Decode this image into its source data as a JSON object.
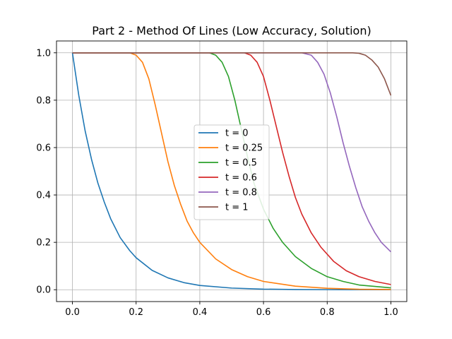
{
  "chart_data": {
    "type": "line",
    "title": "Part 2 - Method Of Lines (Low Accuracy, Solution)",
    "xlabel": "",
    "ylabel": "",
    "xlim": [
      -0.05,
      1.05
    ],
    "ylim": [
      -0.05,
      1.05
    ],
    "xticks": [
      0.0,
      0.2,
      0.4,
      0.6,
      0.8,
      1.0
    ],
    "xtick_labels": [
      "0.0",
      "0.2",
      "0.4",
      "0.6",
      "0.8",
      "1.0"
    ],
    "yticks": [
      0.0,
      0.2,
      0.4,
      0.6,
      0.8,
      1.0
    ],
    "ytick_labels": [
      "0.0",
      "0.2",
      "0.4",
      "0.6",
      "0.8",
      "1.0"
    ],
    "grid": true,
    "legend_position": "center",
    "series": [
      {
        "name": "t = 0",
        "color": "#1f77b4",
        "x": [
          0.0,
          0.02,
          0.04,
          0.06,
          0.08,
          0.1,
          0.12,
          0.15,
          0.18,
          0.2,
          0.25,
          0.3,
          0.35,
          0.4,
          0.5,
          0.6,
          0.7,
          0.8,
          0.9,
          1.0
        ],
        "y": [
          1.0,
          0.82,
          0.67,
          0.55,
          0.45,
          0.37,
          0.3,
          0.22,
          0.165,
          0.135,
          0.082,
          0.05,
          0.03,
          0.018,
          0.007,
          0.0025,
          0.001,
          0.0003,
          0.0001,
          0.0
        ]
      },
      {
        "name": "t = 0.25",
        "color": "#ff7f0e",
        "x": [
          0.0,
          0.1,
          0.18,
          0.2,
          0.22,
          0.24,
          0.26,
          0.28,
          0.3,
          0.32,
          0.34,
          0.36,
          0.38,
          0.4,
          0.45,
          0.5,
          0.55,
          0.6,
          0.7,
          0.8,
          0.9,
          1.0
        ],
        "y": [
          1.0,
          1.0,
          1.0,
          0.99,
          0.96,
          0.89,
          0.78,
          0.66,
          0.54,
          0.44,
          0.36,
          0.29,
          0.24,
          0.2,
          0.13,
          0.085,
          0.055,
          0.035,
          0.015,
          0.006,
          0.002,
          0.001
        ]
      },
      {
        "name": "t = 0.5",
        "color": "#2ca02c",
        "x": [
          0.0,
          0.3,
          0.43,
          0.45,
          0.47,
          0.49,
          0.51,
          0.53,
          0.55,
          0.57,
          0.6,
          0.63,
          0.66,
          0.7,
          0.75,
          0.8,
          0.85,
          0.9,
          1.0
        ],
        "y": [
          1.0,
          1.0,
          1.0,
          0.99,
          0.96,
          0.9,
          0.8,
          0.68,
          0.56,
          0.45,
          0.34,
          0.26,
          0.2,
          0.14,
          0.09,
          0.055,
          0.035,
          0.02,
          0.008
        ]
      },
      {
        "name": "t = 0.6",
        "color": "#d62728",
        "x": [
          0.0,
          0.4,
          0.54,
          0.56,
          0.58,
          0.6,
          0.62,
          0.64,
          0.66,
          0.68,
          0.7,
          0.72,
          0.75,
          0.78,
          0.82,
          0.86,
          0.9,
          0.95,
          1.0
        ],
        "y": [
          1.0,
          1.0,
          1.0,
          0.99,
          0.96,
          0.9,
          0.8,
          0.69,
          0.58,
          0.48,
          0.39,
          0.32,
          0.24,
          0.18,
          0.12,
          0.08,
          0.055,
          0.035,
          0.022
        ]
      },
      {
        "name": "t = 0.8",
        "color": "#9467bd",
        "x": [
          0.0,
          0.6,
          0.72,
          0.75,
          0.77,
          0.79,
          0.81,
          0.83,
          0.85,
          0.87,
          0.89,
          0.91,
          0.93,
          0.95,
          0.97,
          1.0
        ],
        "y": [
          1.0,
          1.0,
          1.0,
          0.99,
          0.96,
          0.91,
          0.83,
          0.73,
          0.62,
          0.52,
          0.43,
          0.35,
          0.29,
          0.24,
          0.2,
          0.16
        ]
      },
      {
        "name": "t = 1",
        "color": "#8c564b",
        "x": [
          0.0,
          0.8,
          0.88,
          0.9,
          0.92,
          0.94,
          0.96,
          0.98,
          1.0
        ],
        "y": [
          1.0,
          1.0,
          1.0,
          0.998,
          0.99,
          0.97,
          0.94,
          0.89,
          0.82
        ]
      }
    ]
  }
}
